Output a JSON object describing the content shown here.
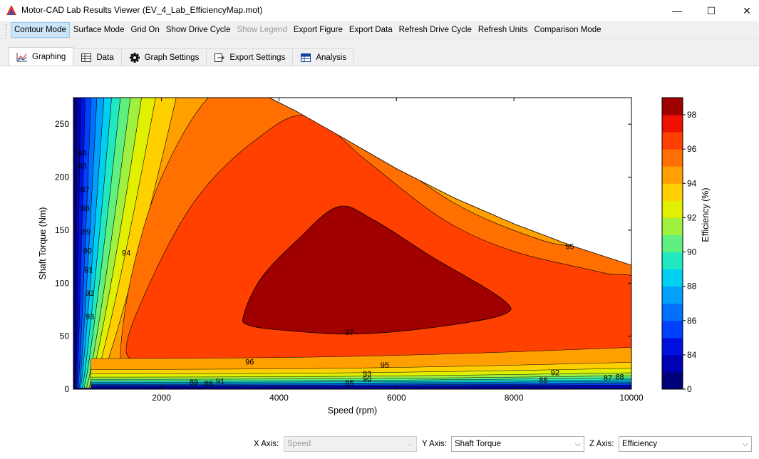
{
  "window": {
    "title": "Motor-CAD Lab Results Viewer (EV_4_Lab_EfficiencyMap.mot)",
    "minimize": "—",
    "maximize": "☐",
    "close": "✕"
  },
  "toolbar": {
    "items": [
      {
        "label": "Contour Mode",
        "state": "active"
      },
      {
        "label": "Surface Mode",
        "state": "normal"
      },
      {
        "label": "Grid On",
        "state": "normal"
      },
      {
        "label": "Show Drive Cycle",
        "state": "normal"
      },
      {
        "label": "Show Legend",
        "state": "disabled"
      },
      {
        "label": "Export Figure",
        "state": "normal"
      },
      {
        "label": "Export Data",
        "state": "normal"
      },
      {
        "label": "Refresh Drive Cycle",
        "state": "normal"
      },
      {
        "label": "Refresh Units",
        "state": "normal"
      },
      {
        "label": "Comparison Mode",
        "state": "normal"
      }
    ]
  },
  "tabs": [
    {
      "label": "Graphing",
      "icon": "line-chart-icon",
      "active": true
    },
    {
      "label": "Data",
      "icon": "table-icon",
      "active": false
    },
    {
      "label": "Graph Settings",
      "icon": "gear-icon",
      "active": false
    },
    {
      "label": "Export Settings",
      "icon": "export-arrow-icon",
      "active": false
    },
    {
      "label": "Analysis",
      "icon": "grid-table-icon",
      "active": false
    }
  ],
  "chart_data": {
    "type": "contour",
    "xlabel": "Speed  (rpm)",
    "ylabel": "Shaft Torque  (Nm)",
    "xlim": [
      500,
      10000
    ],
    "ylim": [
      0,
      275
    ],
    "xticks": [
      2000,
      4000,
      6000,
      8000,
      10000
    ],
    "yticks": [
      0,
      50,
      100,
      150,
      200,
      250
    ],
    "colorbar": {
      "label": "Efficiency (%)",
      "ticks": [
        0,
        84,
        86,
        88,
        90,
        92,
        94,
        96,
        98
      ],
      "levels": [
        0,
        83,
        84,
        85,
        86,
        87,
        88,
        89,
        90,
        91,
        92,
        93,
        94,
        95,
        96,
        97,
        98
      ],
      "colors": [
        "#00007a",
        "#0000b4",
        "#0010e0",
        "#0040ff",
        "#0070ff",
        "#00a0ff",
        "#00d0f0",
        "#20e8c0",
        "#60f080",
        "#a0f040",
        "#e0f000",
        "#ffd000",
        "#ffa000",
        "#ff7000",
        "#ff4000",
        "#ee1000",
        "#a00000"
      ]
    },
    "torque_envelope": [
      [
        500,
        275
      ],
      [
        4000,
        275
      ],
      [
        5000,
        245
      ],
      [
        6000,
        210
      ],
      [
        7000,
        180
      ],
      [
        8000,
        155
      ],
      [
        9000,
        132
      ],
      [
        10000,
        115
      ]
    ],
    "contour_regions": [
      {
        "level": 94,
        "color": "#ff7000"
      },
      {
        "level": 95,
        "color": "#ff4000"
      },
      {
        "level": 96,
        "color": "#ee1000"
      },
      {
        "level": 97,
        "color": "#a00000"
      }
    ],
    "contour_labels": [
      {
        "text": "84",
        "x": 650,
        "y": 222
      },
      {
        "text": "86",
        "x": 650,
        "y": 210
      },
      {
        "text": "87",
        "x": 700,
        "y": 188
      },
      {
        "text": "88",
        "x": 700,
        "y": 170
      },
      {
        "text": "89",
        "x": 720,
        "y": 148
      },
      {
        "text": "90",
        "x": 740,
        "y": 130
      },
      {
        "text": "91",
        "x": 760,
        "y": 112
      },
      {
        "text": "92",
        "x": 780,
        "y": 90
      },
      {
        "text": "93",
        "x": 780,
        "y": 68
      },
      {
        "text": "94",
        "x": 1400,
        "y": 128
      },
      {
        "text": "95",
        "x": 8950,
        "y": 134
      },
      {
        "text": "96",
        "x": 3500,
        "y": 25
      },
      {
        "text": "95",
        "x": 5800,
        "y": 22
      },
      {
        "text": "97",
        "x": 5200,
        "y": 53
      },
      {
        "text": "93",
        "x": 5500,
        "y": 14
      },
      {
        "text": "90",
        "x": 5500,
        "y": 9
      },
      {
        "text": "92",
        "x": 8700,
        "y": 15
      },
      {
        "text": "89",
        "x": 2550,
        "y": 6
      },
      {
        "text": "86",
        "x": 2800,
        "y": 5
      },
      {
        "text": "91",
        "x": 3000,
        "y": 7
      },
      {
        "text": "88",
        "x": 8500,
        "y": 8
      },
      {
        "text": "87",
        "x": 9600,
        "y": 10
      },
      {
        "text": "88",
        "x": 9800,
        "y": 11
      },
      {
        "text": "85",
        "x": 5200,
        "y": 5
      }
    ]
  },
  "axis_selectors": {
    "x_label": "X Axis:",
    "x_value": "Speed",
    "y_label": "Y Axis:",
    "y_value": "Shaft Torque",
    "z_label": "Z Axis:",
    "z_value": "Efficiency"
  }
}
